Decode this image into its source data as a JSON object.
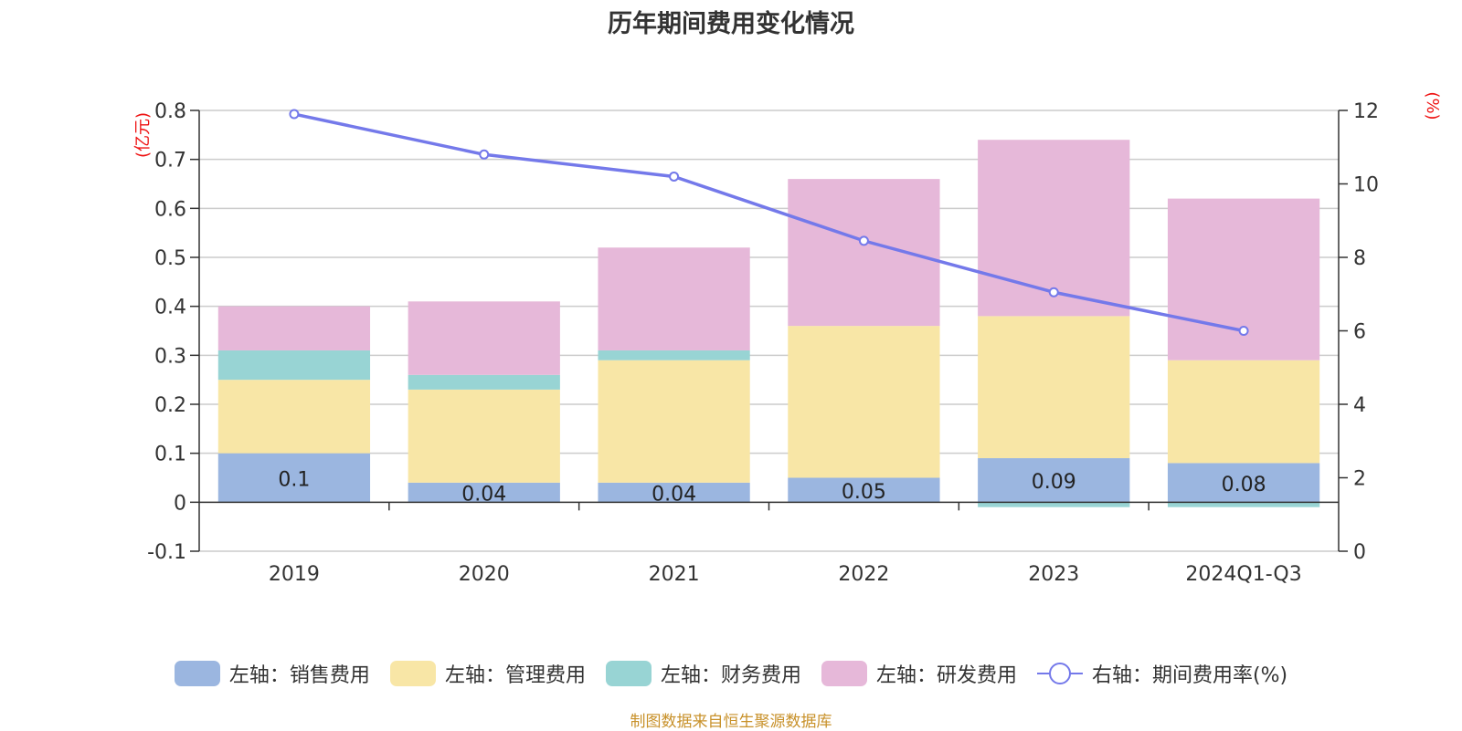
{
  "chart_data": {
    "type": "bar",
    "title": "历年期间费用变化情况",
    "categories": [
      "2019",
      "2020",
      "2021",
      "2022",
      "2023",
      "2024Q1-Q3"
    ],
    "left_axis": {
      "unit_label": "(亿元)",
      "ylim": [
        -0.1,
        0.8
      ],
      "ticks": [
        "0.8",
        "0.7",
        "0.6",
        "0.5",
        "0.4",
        "0.3",
        "0.2",
        "0.1",
        "0",
        "-0.1"
      ]
    },
    "right_axis": {
      "unit_label": "(%)",
      "ylim": [
        0,
        12
      ],
      "ticks": [
        "12",
        "10",
        "8",
        "6",
        "4",
        "2",
        "0"
      ]
    },
    "series": [
      {
        "name": "左轴：销售费用",
        "type": "bar",
        "axis": "left",
        "color": "#9bb6e0",
        "values": [
          0.1,
          0.04,
          0.04,
          0.05,
          0.09,
          0.08
        ],
        "labels": [
          "0.1",
          "0.04",
          "0.04",
          "0.05",
          "0.09",
          "0.08"
        ]
      },
      {
        "name": "左轴：管理费用",
        "type": "bar",
        "axis": "left",
        "color": "#f8e6a6",
        "values": [
          0.15,
          0.19,
          0.25,
          0.31,
          0.29,
          0.21
        ]
      },
      {
        "name": "左轴：财务费用",
        "type": "bar",
        "axis": "left",
        "color": "#98d4d4",
        "values": [
          0.06,
          0.03,
          0.02,
          0.0,
          -0.01,
          -0.01
        ]
      },
      {
        "name": "左轴：研发费用",
        "type": "bar",
        "axis": "left",
        "color": "#e6b8d9",
        "values": [
          0.09,
          0.15,
          0.21,
          0.3,
          0.36,
          0.33
        ]
      },
      {
        "name": "右轴：期间费用率(%)",
        "type": "line",
        "axis": "right",
        "color": "#7479ea",
        "values": [
          11.9,
          10.8,
          10.2,
          8.45,
          7.05,
          6.0
        ]
      }
    ],
    "source": "制图数据来自恒生聚源数据库"
  }
}
